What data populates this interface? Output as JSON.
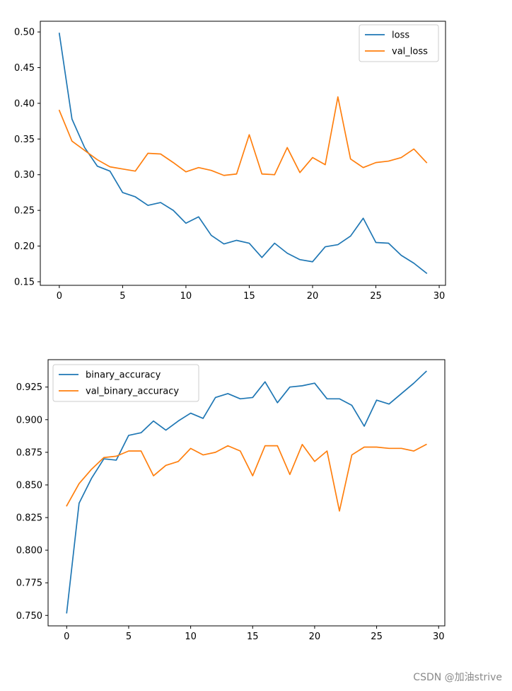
{
  "chart_data": [
    {
      "type": "line",
      "title": "",
      "xlabel": "",
      "ylabel": "",
      "xlim": [
        -1.5,
        30.5
      ],
      "ylim": [
        0.145,
        0.515
      ],
      "xticks": [
        0,
        5,
        10,
        15,
        20,
        25,
        30
      ],
      "xtick_labels": [
        "0",
        "5",
        "10",
        "15",
        "20",
        "25",
        "30"
      ],
      "yticks": [
        0.15,
        0.2,
        0.25,
        0.3,
        0.35,
        0.4,
        0.45,
        0.5
      ],
      "ytick_labels": [
        "0.15",
        "0.20",
        "0.25",
        "0.30",
        "0.35",
        "0.40",
        "0.45",
        "0.50"
      ],
      "grid": false,
      "legend_position": "upper right",
      "x": [
        0,
        1,
        2,
        3,
        4,
        5,
        6,
        7,
        8,
        9,
        10,
        11,
        12,
        13,
        14,
        15,
        16,
        17,
        18,
        19,
        20,
        21,
        22,
        23,
        24,
        25,
        26,
        27,
        28,
        29
      ],
      "series": [
        {
          "name": "loss",
          "color": "#1f77b4",
          "values": [
            0.498,
            0.378,
            0.338,
            0.312,
            0.305,
            0.275,
            0.269,
            0.257,
            0.261,
            0.25,
            0.232,
            0.241,
            0.215,
            0.203,
            0.208,
            0.204,
            0.184,
            0.204,
            0.19,
            0.181,
            0.178,
            0.199,
            0.202,
            0.214,
            0.239,
            0.205,
            0.204,
            0.187,
            0.176,
            0.162
          ]
        },
        {
          "name": "val_loss",
          "color": "#ff7f0e",
          "values": [
            0.39,
            0.347,
            0.334,
            0.321,
            0.311,
            0.308,
            0.305,
            0.33,
            0.329,
            0.317,
            0.304,
            0.31,
            0.306,
            0.299,
            0.301,
            0.356,
            0.301,
            0.3,
            0.338,
            0.303,
            0.324,
            0.314,
            0.409,
            0.322,
            0.31,
            0.317,
            0.319,
            0.324,
            0.336,
            0.317
          ]
        }
      ]
    },
    {
      "type": "line",
      "title": "",
      "xlabel": "",
      "ylabel": "",
      "xlim": [
        -1.5,
        30.5
      ],
      "ylim": [
        0.742,
        0.946
      ],
      "xticks": [
        0,
        5,
        10,
        15,
        20,
        25,
        30
      ],
      "xtick_labels": [
        "0",
        "5",
        "10",
        "15",
        "20",
        "25",
        "30"
      ],
      "yticks": [
        0.75,
        0.775,
        0.8,
        0.825,
        0.85,
        0.875,
        0.9,
        0.925
      ],
      "ytick_labels": [
        "0.750",
        "0.775",
        "0.800",
        "0.825",
        "0.850",
        "0.875",
        "0.900",
        "0.925"
      ],
      "grid": false,
      "legend_position": "upper left",
      "x": [
        0,
        1,
        2,
        3,
        4,
        5,
        6,
        7,
        8,
        9,
        10,
        11,
        12,
        13,
        14,
        15,
        16,
        17,
        18,
        19,
        20,
        21,
        22,
        23,
        24,
        25,
        26,
        27,
        28,
        29
      ],
      "series": [
        {
          "name": "binary_accuracy",
          "color": "#1f77b4",
          "values": [
            0.752,
            0.836,
            0.855,
            0.87,
            0.869,
            0.888,
            0.89,
            0.899,
            0.892,
            0.899,
            0.905,
            0.901,
            0.917,
            0.92,
            0.916,
            0.917,
            0.929,
            0.913,
            0.925,
            0.926,
            0.928,
            0.916,
            0.916,
            0.911,
            0.895,
            0.915,
            0.912,
            0.92,
            0.928,
            0.937
          ]
        },
        {
          "name": "val_binary_accuracy",
          "color": "#ff7f0e",
          "values": [
            0.834,
            0.851,
            0.862,
            0.871,
            0.872,
            0.876,
            0.876,
            0.857,
            0.865,
            0.868,
            0.878,
            0.873,
            0.875,
            0.88,
            0.876,
            0.857,
            0.88,
            0.88,
            0.858,
            0.881,
            0.868,
            0.876,
            0.83,
            0.873,
            0.879,
            0.879,
            0.878,
            0.878,
            0.876,
            0.881
          ]
        }
      ]
    }
  ],
  "watermark": "CSDN @加油strive"
}
